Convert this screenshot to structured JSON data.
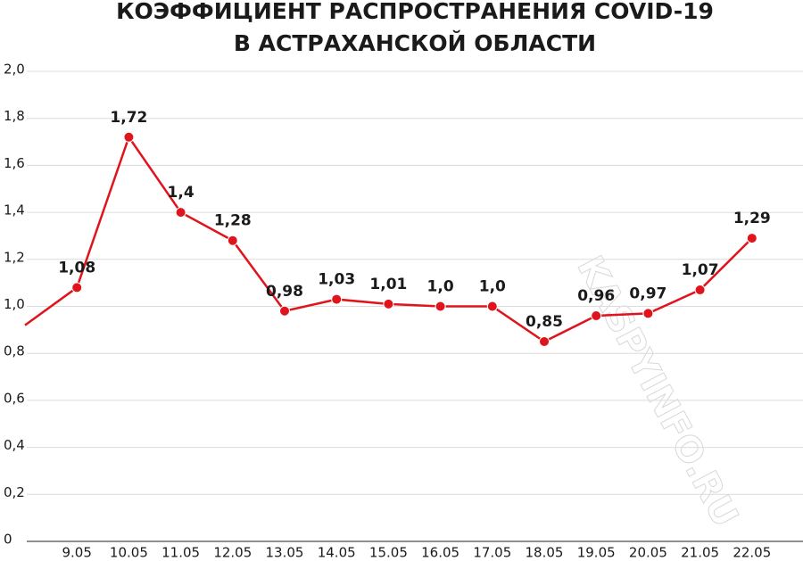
{
  "chart_data": {
    "type": "line",
    "title": "КОЭФФИЦИЕНТ РАСПРОСТРАНЕНИЯ COVID-19",
    "subtitle": "В АСТРАХАНСКОЙ ОБЛАСТИ",
    "watermark": "KASPYINFO.RU",
    "categories": [
      null,
      "9.05",
      "10.05",
      "11.05",
      "12.05",
      "13.05",
      "14.05",
      "15.05",
      "16.05",
      "17.05",
      "18.05",
      "19.05",
      "20.05",
      "21.05",
      "22.05"
    ],
    "series": [
      {
        "name": "R",
        "color": "#e0141c",
        "values": [
          0.92,
          1.08,
          1.72,
          1.4,
          1.28,
          0.98,
          1.03,
          1.01,
          1.0,
          1.0,
          0.85,
          0.96,
          0.97,
          1.07,
          1.29
        ],
        "value_labels": [
          null,
          "1,08",
          "1,72",
          "1,4",
          "1,28",
          "0,98",
          "1,03",
          "1,01",
          "1,0",
          "1,0",
          "0,85",
          "0,96",
          "0,97",
          "1,07",
          "1,29"
        ]
      }
    ],
    "ylim": [
      0,
      2
    ],
    "yticks": [
      0,
      {
        "value": 0.2,
        "label": "0,2"
      },
      {
        "value": 0.4,
        "label": "0,4"
      },
      {
        "value": 0.6,
        "label": "0,6"
      },
      {
        "value": 0.8,
        "label": "0,8"
      },
      {
        "value": 1.0,
        "label": "1,0"
      },
      {
        "value": 1.2,
        "label": "1,2"
      },
      {
        "value": 1.4,
        "label": "1,4"
      },
      {
        "value": 1.6,
        "label": "1,6"
      },
      {
        "value": 1.8,
        "label": "1,8"
      },
      {
        "value": 2.0,
        "label": "2,0"
      }
    ],
    "grid": true
  }
}
